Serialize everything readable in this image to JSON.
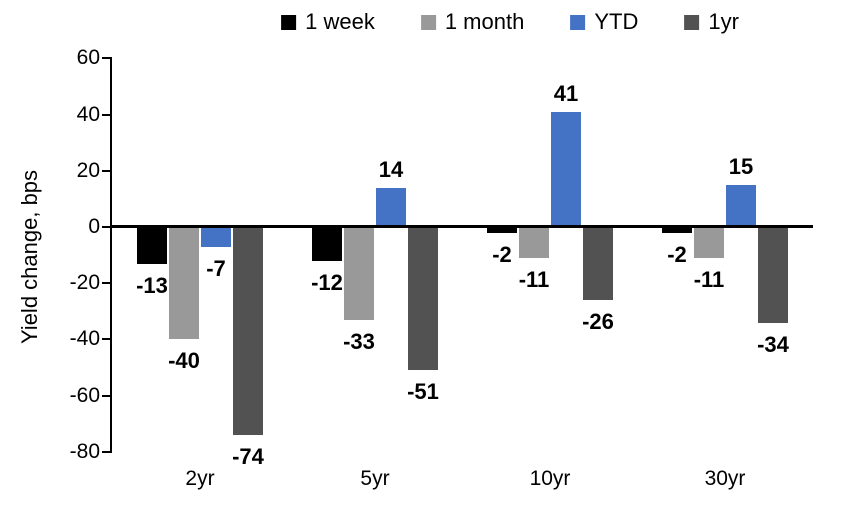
{
  "chart_data": {
    "type": "bar",
    "title": "",
    "ylabel": "Yield change, bps",
    "xlabel": "",
    "categories": [
      "2yr",
      "5yr",
      "10yr",
      "30yr"
    ],
    "series": [
      {
        "name": "1 week",
        "color": "#000000",
        "values": [
          -13,
          -12,
          -2,
          -2
        ]
      },
      {
        "name": "1 month",
        "color": "#999999",
        "values": [
          -40,
          -33,
          -11,
          -11
        ]
      },
      {
        "name": "YTD",
        "color": "#4472C4",
        "values": [
          -7,
          14,
          41,
          15
        ]
      },
      {
        "name": "1yr",
        "color": "#525252",
        "values": [
          -74,
          -51,
          -26,
          -34
        ]
      }
    ],
    "ylim": [
      -80,
      60
    ],
    "ytick_step": 20,
    "grid": false,
    "legend_position": "top",
    "axis_color": "#000000",
    "data_labels": true
  }
}
